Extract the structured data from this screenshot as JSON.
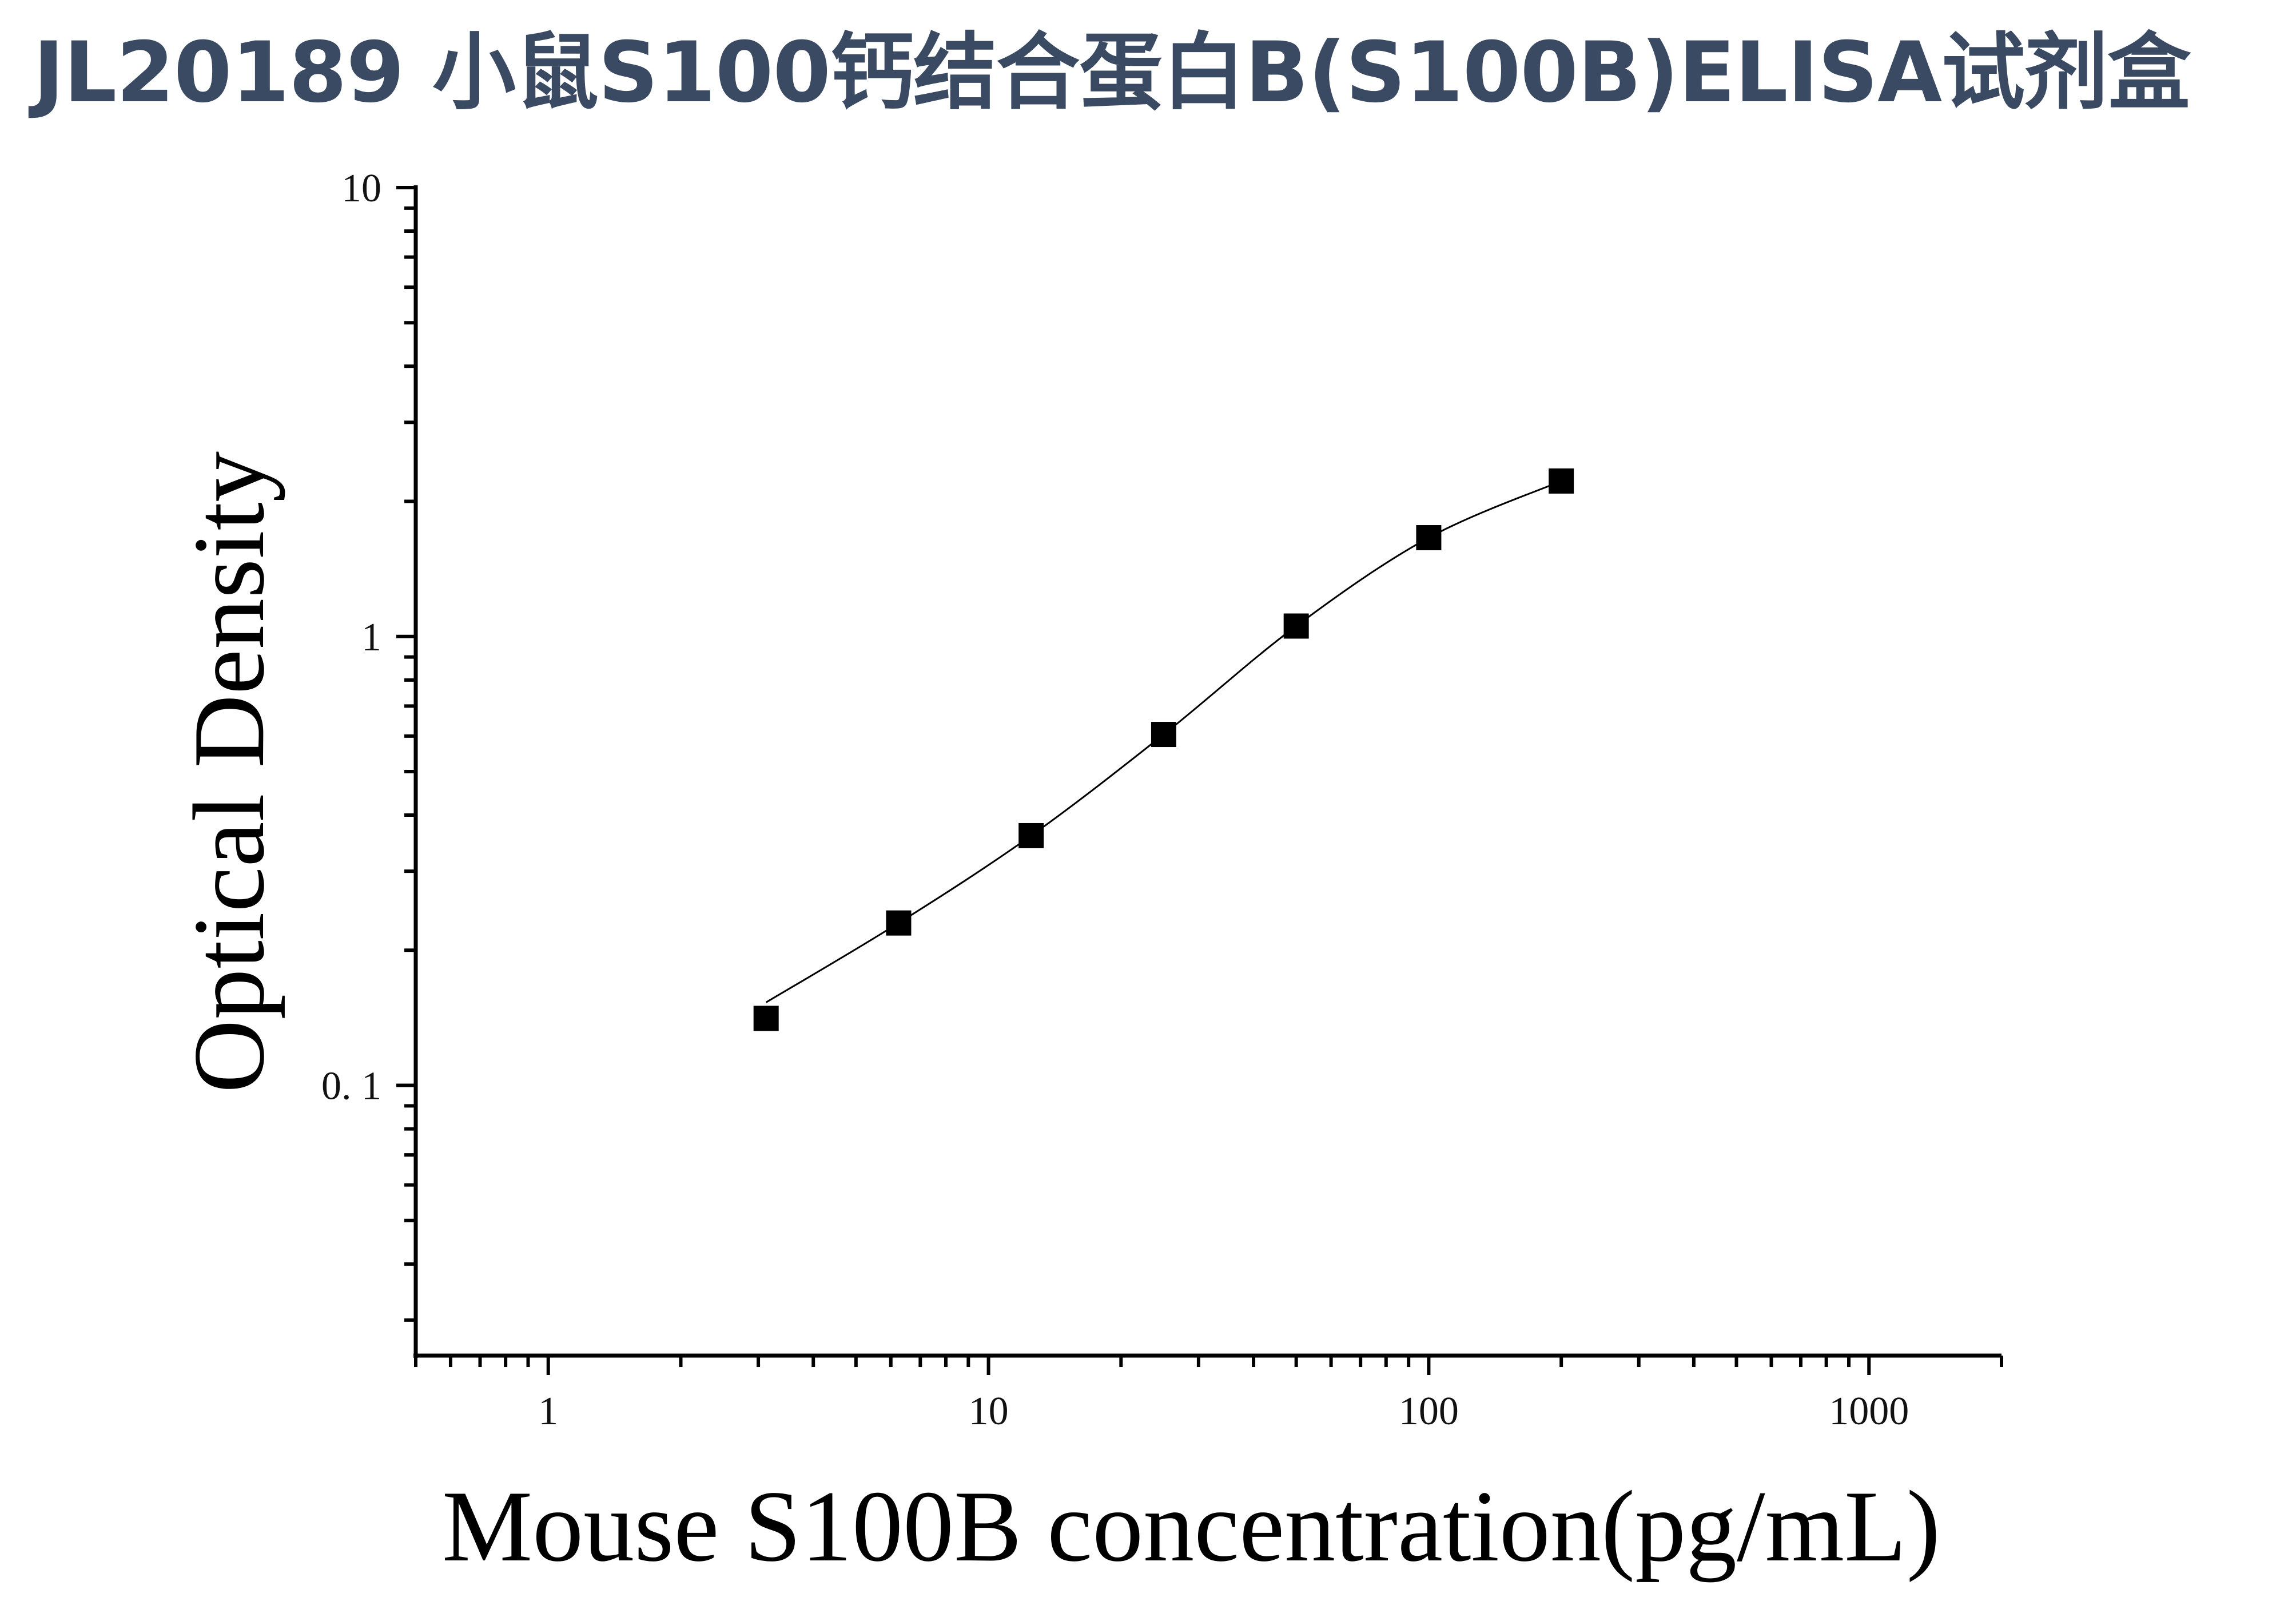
{
  "title": "JL20189 小鼠S100钙结合蛋白B(S100B)ELISA试剂盒",
  "chart_data": {
    "type": "scatter",
    "xlabel": "Mouse S100B concentration(pg/mL)",
    "ylabel": "Optical Density",
    "xscale": "log",
    "yscale": "log",
    "xlim": [
      0.5,
      2000
    ],
    "ylim": [
      0.025,
      10
    ],
    "x_ticks": [
      {
        "value": 1,
        "label": "1"
      },
      {
        "value": 10,
        "label": "10"
      },
      {
        "value": 100,
        "label": "100"
      },
      {
        "value": 1000,
        "label": "1000"
      }
    ],
    "y_ticks": [
      {
        "value": 0.1,
        "label": "0. 1"
      },
      {
        "value": 1,
        "label": "1"
      },
      {
        "value": 10,
        "label": "10"
      }
    ],
    "grid": false,
    "fit_curve": true,
    "series": [
      {
        "marker": "square",
        "color": "#000000",
        "x": [
          3.125,
          6.25,
          12.5,
          25,
          50,
          100,
          200
        ],
        "y": [
          0.141,
          0.23,
          0.36,
          0.605,
          1.055,
          1.66,
          2.22
        ]
      }
    ]
  }
}
